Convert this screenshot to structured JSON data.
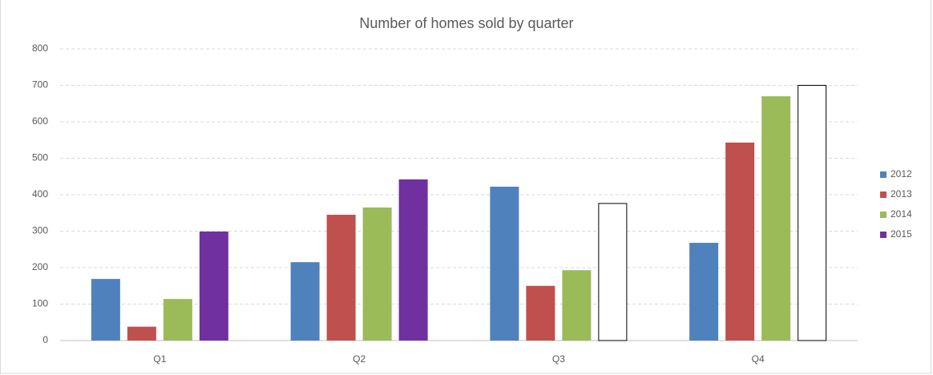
{
  "chart_data": {
    "type": "bar",
    "title": "Number of homes sold by quarter",
    "categories": [
      "Q1",
      "Q2",
      "Q3",
      "Q4"
    ],
    "series": [
      {
        "name": "2012",
        "color": "#4f81bd",
        "values": [
          169,
          215,
          422,
          268
        ]
      },
      {
        "name": "2013",
        "color": "#c0504d",
        "values": [
          38,
          345,
          150,
          543
        ]
      },
      {
        "name": "2014",
        "color": "#9bbb59",
        "values": [
          114,
          365,
          193,
          670
        ]
      },
      {
        "name": "2015",
        "color": "#7030a0",
        "values": [
          299,
          442,
          376,
          700
        ],
        "point_colors": [
          "#7030a0",
          "#7030a0",
          "#ffffff",
          "#ffffff"
        ],
        "point_edges": [
          null,
          null,
          "#000000",
          "#000000"
        ]
      }
    ],
    "ylim": [
      0,
      800
    ],
    "yticks": [
      0,
      100,
      200,
      300,
      400,
      500,
      600,
      700,
      800
    ],
    "grid": true,
    "legend": "right"
  }
}
